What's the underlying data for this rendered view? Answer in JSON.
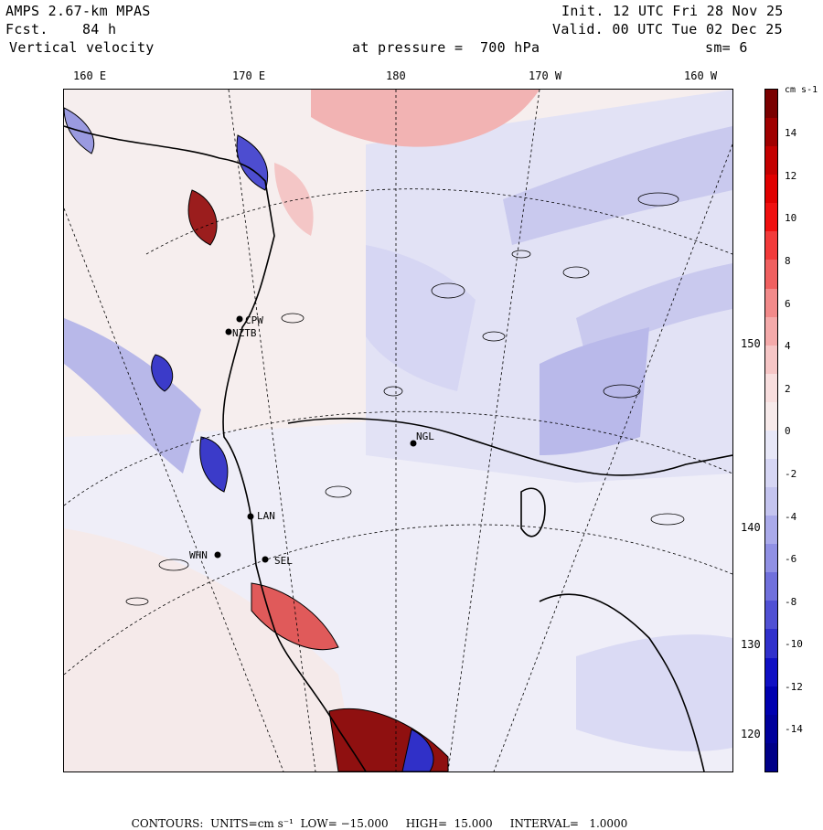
{
  "header": {
    "model": "AMPS 2.67-km MPAS",
    "fcst": "Fcst.    84 h",
    "field": "Vertical velocity",
    "init": "Init. 12 UTC Fri 28 Nov 25",
    "valid": "Valid. 00 UTC Tue 02 Dec 25",
    "level": "at pressure =  700 hPa",
    "smooth": "sm= 6"
  },
  "longitude_labels": [
    "160 E",
    "170 E",
    "180",
    "170 W",
    "160 W"
  ],
  "latitude_labels": [
    "150 W",
    "140 W",
    "130 W",
    "120 W"
  ],
  "stations": [
    "CPW",
    "NZTB",
    "LAN",
    "WHN",
    "SEL",
    "NGL"
  ],
  "colorbar": {
    "unit": "cm s-1",
    "ticks": [
      "14",
      "12",
      "10",
      "8",
      "6",
      "4",
      "2",
      "0",
      "-2",
      "-4",
      "-6",
      "-8",
      "-10",
      "-12",
      "-14"
    ],
    "colors": [
      "#7a0000",
      "#a00000",
      "#c40000",
      "#e00000",
      "#f01010",
      "#f23a3a",
      "#f06060",
      "#f28a8a",
      "#f4aaaa",
      "#f6c6c6",
      "#f8dede",
      "#f7eaea",
      "#e7e7f7",
      "#d6d6f4",
      "#c4c4ef",
      "#aaaaea",
      "#9090e4",
      "#7070dc",
      "#5050d4",
      "#3030cc",
      "#1010c4",
      "#0000b0",
      "#00009c",
      "#000088"
    ]
  },
  "footer": {
    "contours": "CONTOURS:",
    "units": "UNITS=cm s⁻¹",
    "low": "LOW= −15.000",
    "high": "HIGH=  15.000",
    "interval": "INTERVAL=   1.0000"
  }
}
